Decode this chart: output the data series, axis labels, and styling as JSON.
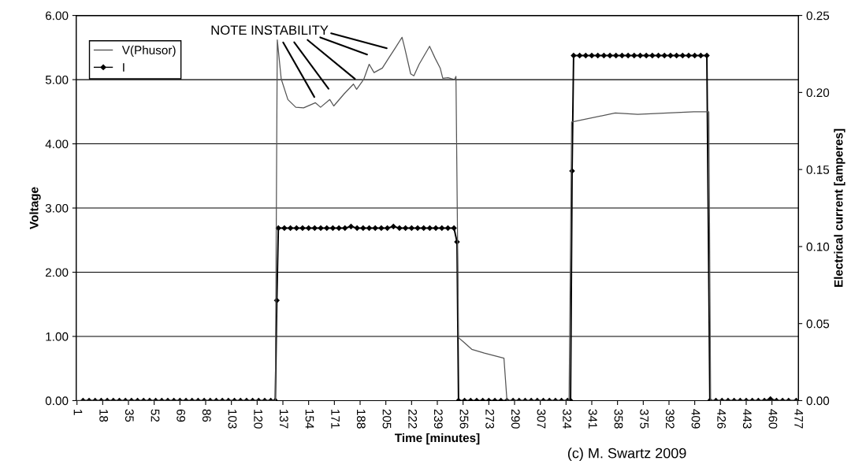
{
  "chart_data": {
    "type": "line",
    "xlabel": "Time [minutes]",
    "ylabel": "Voltage",
    "y2label": "Electrical current [amperes]",
    "annotations": [
      {
        "text": "NOTE INSTABILITY",
        "x": 158.5,
        "y": 4.64
      },
      "(c) M. Swartz 2009"
    ],
    "xlim": [
      0.5,
      477.5
    ],
    "xticks": [
      1,
      18,
      35,
      52,
      69,
      86,
      103,
      120,
      137,
      154,
      171,
      188,
      205,
      222,
      239,
      256,
      273,
      290,
      307,
      324,
      341,
      358,
      375,
      392,
      409,
      426,
      443,
      460,
      477
    ],
    "ylim": [
      0,
      6
    ],
    "yticks": [
      {
        "value": 0,
        "label": "0.00"
      },
      {
        "value": 1,
        "label": "1.00"
      },
      {
        "value": 2,
        "label": "2.00"
      },
      {
        "value": 3,
        "label": "3.00"
      },
      {
        "value": 4,
        "label": "4.00"
      },
      {
        "value": 5,
        "label": "5.00"
      },
      {
        "value": 6,
        "label": "6.00"
      }
    ],
    "y2lim": [
      0,
      0.25
    ],
    "y2ticks": [
      {
        "value": 0,
        "label": "0.00"
      },
      {
        "value": 0.05,
        "label": "0.05"
      },
      {
        "value": 0.1,
        "label": "0.10"
      },
      {
        "value": 0.15,
        "label": "0.15"
      },
      {
        "value": 0.2,
        "label": "0.20"
      },
      {
        "value": 0.25,
        "label": "0.25"
      }
    ],
    "grid": "y",
    "legend": "top left",
    "series": [
      {
        "name": "V(Phusor)",
        "color": "#555555",
        "marker": "none",
        "x": [
          1,
          132,
          133.3,
          135.9,
          140.3,
          145.5,
          150.7,
          158.5,
          161.9,
          168.0,
          170.6,
          177.5,
          183.6,
          185.7,
          190.5,
          194.0,
          197.2,
          202.7,
          207.0,
          211.4,
          215.7,
          217.4,
          221.4,
          223.5,
          227.0,
          233.9,
          237.4,
          240.9,
          242.6,
          246.1,
          250.4,
          251.3,
          253,
          256,
          261.7,
          270,
          283,
          285,
          326,
          327.7,
          356.5,
          371.3,
          408.4,
          418.3,
          419.5,
          477
        ],
        "values": [
          0,
          0,
          5.62,
          5.01,
          4.69,
          4.57,
          4.56,
          4.64,
          4.57,
          4.69,
          4.59,
          4.78,
          4.93,
          4.85,
          5.01,
          5.24,
          5.11,
          5.18,
          5.34,
          5.5,
          5.66,
          5.5,
          5.09,
          5.06,
          5.24,
          5.52,
          5.34,
          5.18,
          5.02,
          5.03,
          5.0,
          5.05,
          0.98,
          0.92,
          0.8,
          0.74,
          0.66,
          0,
          0,
          4.34,
          4.48,
          4.46,
          4.5,
          4.5,
          0,
          0
        ]
      },
      {
        "name": "I",
        "color": "#000000",
        "marker": "diamond",
        "axis": "y2",
        "x": [
          5,
          9,
          13,
          17,
          21,
          25,
          29,
          33,
          37,
          41,
          45,
          49,
          53,
          57,
          61,
          65,
          69,
          73,
          77,
          81,
          85,
          89,
          93,
          97,
          101,
          105,
          109,
          113,
          117,
          121,
          125,
          129,
          132,
          133,
          134,
          138,
          142,
          146,
          150,
          154,
          158,
          162,
          166,
          170,
          174,
          178,
          182,
          186,
          190,
          194,
          198,
          202,
          206,
          210,
          214,
          218,
          222,
          226,
          230,
          234,
          238,
          242,
          246,
          250,
          252,
          253,
          257,
          261,
          265,
          269,
          273,
          277,
          281,
          285,
          289,
          293,
          297,
          301,
          305,
          309,
          313,
          317,
          321,
          325,
          327,
          328,
          329,
          333,
          337,
          341,
          345,
          349,
          353,
          357,
          361,
          365,
          369,
          373,
          377,
          381,
          385,
          389,
          393,
          397,
          401,
          405,
          409,
          413,
          417,
          419,
          423,
          427,
          431,
          435,
          439,
          443,
          447,
          451,
          455,
          459,
          463,
          467,
          471,
          476
        ],
        "values": [
          0,
          0,
          0,
          0,
          0,
          0,
          0,
          0,
          0,
          0,
          0,
          0,
          0,
          0,
          0,
          0,
          0,
          0,
          0,
          0,
          0,
          0,
          0,
          0,
          0,
          0,
          0,
          0,
          0,
          0,
          0,
          0,
          0,
          0.065,
          0.112,
          0.112,
          0.112,
          0.112,
          0.112,
          0.112,
          0.112,
          0.112,
          0.112,
          0.112,
          0.112,
          0.112,
          0.113,
          0.112,
          0.112,
          0.112,
          0.112,
          0.112,
          0.112,
          0.113,
          0.112,
          0.112,
          0.112,
          0.112,
          0.112,
          0.112,
          0.112,
          0.112,
          0.112,
          0.112,
          0.103,
          0,
          0,
          0,
          0,
          0,
          0,
          0,
          0,
          0,
          0,
          0,
          0,
          0,
          0,
          0,
          0,
          0,
          0,
          0,
          0,
          0.149,
          0.224,
          0.224,
          0.224,
          0.224,
          0.224,
          0.224,
          0.224,
          0.224,
          0.224,
          0.224,
          0.224,
          0.224,
          0.224,
          0.224,
          0.224,
          0.224,
          0.224,
          0.224,
          0.224,
          0.224,
          0.224,
          0.224,
          0.224,
          0,
          0,
          0,
          0,
          0,
          0,
          0,
          0,
          0,
          0,
          0.001,
          0,
          0,
          0,
          0
        ]
      }
    ]
  }
}
